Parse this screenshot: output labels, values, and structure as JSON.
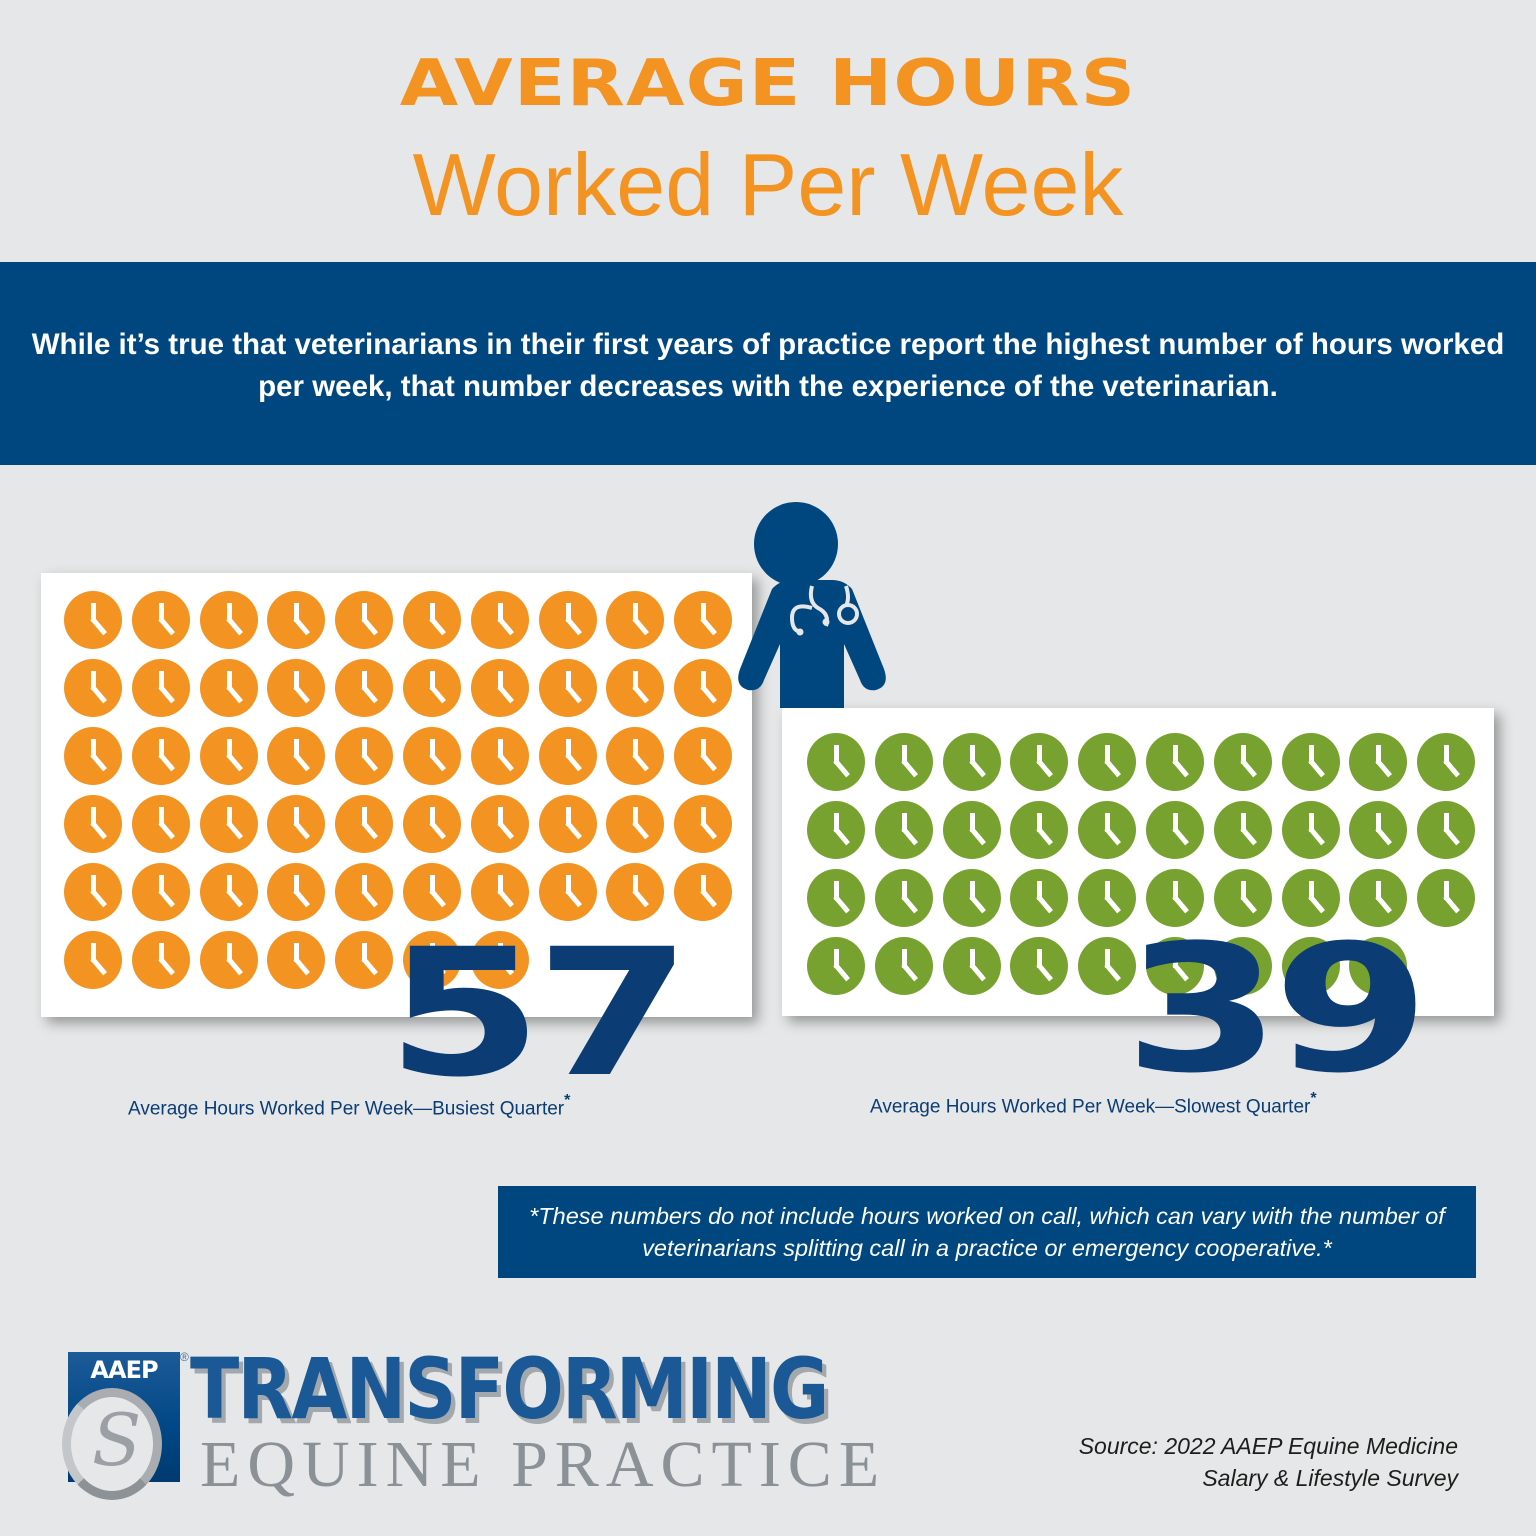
{
  "header": {
    "title_line1": "AVERAGE HOURS",
    "title_line2": "Worked Per Week"
  },
  "banner": {
    "text": "While it’s true that veterinarians in their first years of practice report the highest number of hours worked per week, that number decreases with the experience of the veterinarian."
  },
  "colors": {
    "background": "#e6e7e8",
    "title_orange": "#f39321",
    "banner_blue": "#00477f",
    "number_blue": "#0b3c73",
    "busiest_clock": "#f39321",
    "slowest_clock": "#77a22f"
  },
  "figure": {
    "icon": "doctor-with-stethoscope-icon"
  },
  "busiest": {
    "value": "57",
    "caption": "Average Hours Worked Per Week—Busiest Quarter",
    "asterisk": "*",
    "icon": "clock-icon",
    "columns": 10
  },
  "slowest": {
    "value": "39",
    "caption": "Average Hours Worked Per Week—Slowest Quarter",
    "asterisk": "*",
    "icon": "clock-icon",
    "columns": 10
  },
  "footnote": {
    "text": "*These numbers do not include hours worked on call, which can vary with the number of veterinarians splitting call in a practice or emergency cooperative.*"
  },
  "logo": {
    "badge": "AAEP",
    "registered": "®",
    "line1": "TRANSFORMING",
    "line2": "EQUINE PRACTICE"
  },
  "source": {
    "line1": "Source: 2022 AAEP Equine Medicine",
    "line2": "Salary & Lifestyle Survey"
  },
  "chart_data": {
    "type": "bar",
    "title": "Average Hours Worked Per Week",
    "subtitle": "Pictograph: one clock icon = one hour",
    "categories": [
      "Busiest Quarter",
      "Slowest Quarter"
    ],
    "values": [
      57,
      39
    ],
    "xlabel": "",
    "ylabel": "Average Hours Worked Per Week",
    "unit": "hours",
    "series_colors": [
      "#f39321",
      "#77a22f"
    ],
    "annotations": [
      "These numbers do not include hours worked on call, which can vary with the number of veterinarians splitting call in a practice or emergency cooperative."
    ],
    "source": "2022 AAEP Equine Medicine Salary & Lifestyle Survey"
  }
}
